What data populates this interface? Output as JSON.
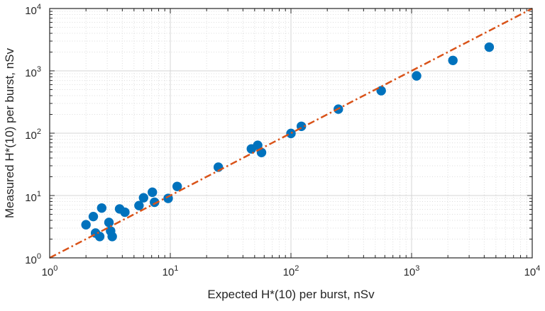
{
  "figure": {
    "background": "#ffffff",
    "frame_color": "#262626",
    "text_color": "#262626",
    "major_grid_color": "#d4d4d4",
    "minor_grid_color": "#dcdcdc",
    "tick_base": "10"
  },
  "chart_data": {
    "type": "scatter",
    "title": "",
    "xlabel": "Expected H*(10) per burst, nSv",
    "ylabel": "Measured H*(10) per burst, nSv",
    "x_scale": "log",
    "y_scale": "log",
    "xlim": [
      1,
      10000
    ],
    "ylim": [
      1,
      10000
    ],
    "x_tick_exponents": [
      0,
      1,
      2,
      3,
      4
    ],
    "y_tick_exponents": [
      0,
      1,
      2,
      3,
      4
    ],
    "grid": true,
    "minor_grid": true,
    "legend": "none",
    "marker_color": "#0072BD",
    "marker_radius_px": 6.7,
    "line_color": "#D95319",
    "line_style": "dash-dot",
    "points": [
      [
        2.0,
        3.4
      ],
      [
        2.3,
        4.6
      ],
      [
        2.4,
        2.5
      ],
      [
        2.6,
        2.2
      ],
      [
        2.7,
        6.3
      ],
      [
        3.1,
        3.7
      ],
      [
        3.2,
        2.7
      ],
      [
        3.3,
        2.2
      ],
      [
        3.8,
        6.1
      ],
      [
        4.2,
        5.4
      ],
      [
        5.5,
        6.9
      ],
      [
        6.0,
        9.2
      ],
      [
        7.1,
        11.3
      ],
      [
        7.4,
        7.8
      ],
      [
        9.6,
        9.0
      ],
      [
        11.4,
        14.0
      ],
      [
        25,
        28.5
      ],
      [
        47,
        56
      ],
      [
        53,
        64
      ],
      [
        57,
        49
      ],
      [
        100,
        99
      ],
      [
        122,
        129
      ],
      [
        247,
        243
      ],
      [
        560,
        480
      ],
      [
        1100,
        830
      ],
      [
        2200,
        1470
      ],
      [
        4400,
        2400
      ]
    ],
    "reference_line": {
      "name": "identity-line",
      "from": [
        1,
        1
      ],
      "to": [
        10000,
        10000
      ]
    }
  }
}
